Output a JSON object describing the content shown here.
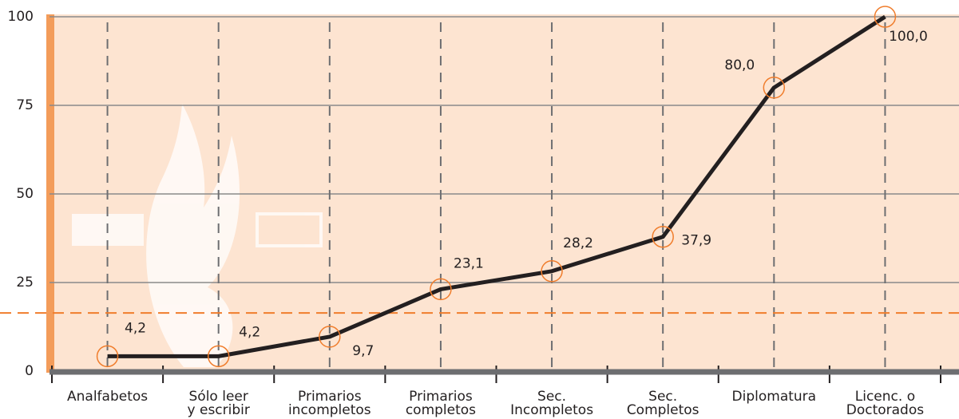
{
  "chart_data": {
    "type": "line",
    "categories": [
      [
        "Analfabetos"
      ],
      [
        "Sólo leer",
        "y escribir"
      ],
      [
        "Primarios",
        "incompletos"
      ],
      [
        "Primarios",
        "completos"
      ],
      [
        "Sec.",
        "Incompletos"
      ],
      [
        "Sec.",
        "Completos"
      ],
      [
        "Diplomatura"
      ],
      [
        "Licenc. o",
        "Doctorados"
      ]
    ],
    "series": [
      {
        "color": "#231f20",
        "values": [
          4.2,
          4.2,
          9.7,
          23.1,
          28.2,
          37.9,
          80.0,
          100.0
        ],
        "value_labels": [
          "4,2",
          "4,2",
          "9,7",
          "23,1",
          "28,2",
          "37,9",
          "80,0",
          "100,0"
        ]
      }
    ],
    "ylim": [
      0,
      100
    ],
    "yticks": [
      0,
      25,
      50,
      75,
      100
    ],
    "grid": true,
    "reference_line": 16.4,
    "reference_color": "#f07d2c",
    "marker_color": "#f07d2c"
  }
}
